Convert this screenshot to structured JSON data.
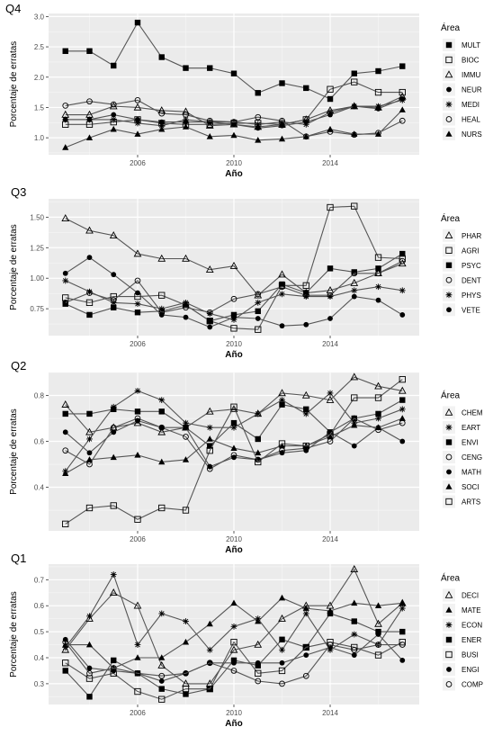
{
  "chart_data": [
    {
      "type": "line",
      "title": "Q4",
      "xlabel": "Año",
      "ylabel": "Porcentaje de erratas",
      "legend_title": "Área",
      "legend_position": "right",
      "grid": true,
      "xlim": [
        2002.3,
        2017.7
      ],
      "ylim": [
        0.72,
        3.05
      ],
      "x_ticks": [
        2006,
        2010,
        2014
      ],
      "y_ticks": [
        1.0,
        1.5,
        2.0,
        2.5,
        3.0
      ],
      "y_tick_labels": [
        "1.0",
        "1.5",
        "2.0",
        "2.5",
        "3.0"
      ],
      "x": [
        2003,
        2004,
        2005,
        2006,
        2007,
        2008,
        2009,
        2010,
        2011,
        2012,
        2013,
        2014,
        2015,
        2016,
        2017
      ],
      "series": [
        {
          "name": "MULT",
          "marker": "square-filled",
          "values": [
            2.43,
            2.43,
            2.19,
            2.9,
            2.33,
            2.15,
            2.15,
            2.06,
            1.74,
            1.9,
            1.82,
            1.64,
            2.06,
            2.1,
            2.18
          ]
        },
        {
          "name": "BIOC",
          "marker": "square-open",
          "values": [
            1.22,
            1.22,
            1.26,
            1.3,
            1.24,
            1.22,
            1.22,
            1.24,
            1.24,
            1.22,
            1.3,
            1.8,
            1.92,
            1.75,
            1.75
          ]
        },
        {
          "name": "IMMU",
          "marker": "triangle-open",
          "values": [
            1.38,
            1.38,
            1.52,
            1.5,
            1.45,
            1.43,
            1.2,
            1.22,
            1.18,
            1.22,
            1.3,
            1.45,
            1.52,
            1.5,
            1.68
          ]
        },
        {
          "name": "NEUR",
          "marker": "circle-filled",
          "values": [
            1.3,
            1.3,
            1.38,
            1.3,
            1.26,
            1.26,
            1.26,
            1.22,
            1.16,
            1.2,
            1.26,
            1.38,
            1.52,
            1.48,
            1.64
          ]
        },
        {
          "name": "MEDI",
          "marker": "asterisk",
          "values": [
            1.3,
            1.3,
            1.3,
            1.24,
            1.2,
            1.3,
            1.26,
            1.26,
            1.22,
            1.26,
            1.22,
            1.42,
            1.52,
            1.52,
            1.62
          ]
        },
        {
          "name": "HEAL",
          "marker": "circle-open",
          "values": [
            1.53,
            1.6,
            1.55,
            1.62,
            1.4,
            1.38,
            1.28,
            1.26,
            1.34,
            1.28,
            1.02,
            1.1,
            1.05,
            1.08,
            1.28
          ]
        },
        {
          "name": "NURS",
          "marker": "triangle-filled",
          "values": [
            0.84,
            1.0,
            1.14,
            1.06,
            1.14,
            1.18,
            1.02,
            1.04,
            0.96,
            0.98,
            1.02,
            1.14,
            1.06,
            1.06,
            1.46
          ]
        }
      ]
    },
    {
      "type": "line",
      "title": "Q3",
      "xlabel": "Año",
      "ylabel": "Porcentaje de erratas",
      "legend_title": "Área",
      "legend_position": "right",
      "grid": true,
      "xlim": [
        2002.3,
        2017.7
      ],
      "ylim": [
        0.53,
        1.65
      ],
      "x_ticks": [
        2006,
        2010,
        2014
      ],
      "y_ticks": [
        0.75,
        1.0,
        1.25,
        1.5
      ],
      "y_tick_labels": [
        "0.75",
        "1.00",
        "1.25",
        "1.50"
      ],
      "x": [
        2003,
        2004,
        2005,
        2006,
        2007,
        2008,
        2009,
        2010,
        2011,
        2012,
        2013,
        2014,
        2015,
        2016,
        2017
      ],
      "series": [
        {
          "name": "PHAR",
          "marker": "triangle-open",
          "values": [
            1.49,
            1.39,
            1.35,
            1.2,
            1.16,
            1.16,
            1.07,
            1.1,
            0.86,
            1.03,
            0.88,
            0.9,
            0.96,
            1.04,
            1.12
          ]
        },
        {
          "name": "AGRI",
          "marker": "square-open",
          "values": [
            0.84,
            0.8,
            0.85,
            0.85,
            0.86,
            0.78,
            0.65,
            0.59,
            0.58,
            0.94,
            0.94,
            1.58,
            1.59,
            1.17,
            1.16
          ]
        },
        {
          "name": "PSYC",
          "marker": "square-filled",
          "values": [
            0.79,
            0.7,
            0.76,
            0.72,
            0.73,
            0.78,
            0.65,
            0.7,
            0.73,
            0.95,
            0.88,
            1.08,
            1.05,
            1.08,
            1.2
          ]
        },
        {
          "name": "DENT",
          "marker": "circle-open",
          "values": [
            0.8,
            0.88,
            0.82,
            0.98,
            0.72,
            0.76,
            0.72,
            0.83,
            0.87,
            0.93,
            0.86,
            0.86,
            1.04,
            1.04,
            1.14
          ]
        },
        {
          "name": "PHYS",
          "marker": "asterisk",
          "values": [
            0.98,
            0.89,
            0.8,
            0.79,
            0.75,
            0.8,
            0.71,
            0.66,
            0.8,
            0.87,
            0.85,
            0.85,
            0.9,
            0.93,
            0.9
          ]
        },
        {
          "name": "VETE",
          "marker": "circle-filled",
          "values": [
            1.04,
            1.17,
            1.03,
            0.88,
            0.7,
            0.68,
            0.6,
            0.68,
            0.67,
            0.61,
            0.62,
            0.67,
            0.85,
            0.82,
            0.7
          ]
        }
      ]
    },
    {
      "type": "line",
      "title": "Q2",
      "xlabel": "Año",
      "ylabel": "Porcentaje de erratas",
      "legend_title": "Área",
      "legend_position": "right",
      "grid": true,
      "xlim": [
        2002.3,
        2017.7
      ],
      "ylim": [
        0.21,
        0.9
      ],
      "x_ticks": [
        2006,
        2010,
        2014
      ],
      "y_ticks": [
        0.4,
        0.6,
        0.8
      ],
      "y_tick_labels": [
        "0.4",
        "0.6",
        "0.8"
      ],
      "x": [
        2003,
        2004,
        2005,
        2006,
        2007,
        2008,
        2009,
        2010,
        2011,
        2012,
        2013,
        2014,
        2015,
        2016,
        2017
      ],
      "series": [
        {
          "name": "CHEM",
          "marker": "triangle-open",
          "values": [
            0.76,
            0.64,
            0.66,
            0.68,
            0.64,
            0.66,
            0.73,
            0.74,
            0.72,
            0.81,
            0.8,
            0.78,
            0.88,
            0.84,
            0.82
          ]
        },
        {
          "name": "EART",
          "marker": "asterisk",
          "values": [
            0.47,
            0.61,
            0.75,
            0.82,
            0.78,
            0.68,
            0.66,
            0.66,
            0.72,
            0.78,
            0.72,
            0.81,
            0.68,
            0.7,
            0.74
          ]
        },
        {
          "name": "ENVI",
          "marker": "square-filled",
          "values": [
            0.72,
            0.72,
            0.74,
            0.73,
            0.73,
            0.66,
            0.58,
            0.68,
            0.61,
            0.76,
            0.74,
            0.64,
            0.7,
            0.72,
            0.78
          ]
        },
        {
          "name": "CENG",
          "marker": "circle-open",
          "values": [
            0.56,
            0.5,
            0.66,
            0.7,
            0.66,
            0.62,
            0.48,
            0.54,
            0.52,
            0.56,
            0.57,
            0.6,
            0.7,
            0.65,
            0.68
          ]
        },
        {
          "name": "MATH",
          "marker": "circle-filled",
          "values": [
            0.64,
            0.55,
            0.64,
            0.69,
            0.66,
            0.66,
            0.49,
            0.53,
            0.52,
            0.55,
            0.56,
            0.64,
            0.58,
            0.66,
            0.6
          ]
        },
        {
          "name": "SOCI",
          "marker": "triangle-filled",
          "values": [
            0.46,
            0.52,
            0.53,
            0.54,
            0.51,
            0.52,
            0.61,
            0.57,
            0.55,
            0.58,
            0.58,
            0.62,
            0.67,
            0.66,
            0.7
          ]
        },
        {
          "name": "ARTS",
          "marker": "square-open",
          "values": [
            0.24,
            0.31,
            0.32,
            0.26,
            0.31,
            0.3,
            0.56,
            0.75,
            0.51,
            0.59,
            0.58,
            0.63,
            0.79,
            0.79,
            0.87
          ]
        }
      ]
    },
    {
      "type": "line",
      "title": "Q1",
      "xlabel": "Año",
      "ylabel": "Porcentaje de erratas",
      "legend_title": "Área",
      "legend_position": "right",
      "grid": true,
      "xlim": [
        2002.3,
        2017.7
      ],
      "ylim": [
        0.22,
        0.76
      ],
      "x_ticks": [
        2006,
        2010,
        2014
      ],
      "y_ticks": [
        0.3,
        0.4,
        0.5,
        0.6,
        0.7
      ],
      "y_tick_labels": [
        "0.3",
        "0.4",
        "0.5",
        "0.6",
        "0.7"
      ],
      "x": [
        2003,
        2004,
        2005,
        2006,
        2007,
        2008,
        2009,
        2010,
        2011,
        2012,
        2013,
        2014,
        2015,
        2016,
        2017
      ],
      "series": [
        {
          "name": "DECI",
          "marker": "triangle-open",
          "values": [
            0.43,
            0.55,
            0.65,
            0.6,
            0.37,
            0.3,
            0.3,
            0.43,
            0.45,
            0.55,
            0.6,
            0.6,
            0.74,
            0.53,
            0.61
          ]
        },
        {
          "name": "MATE",
          "marker": "triangle-filled",
          "values": [
            0.45,
            0.45,
            0.36,
            0.4,
            0.4,
            0.46,
            0.53,
            0.61,
            0.54,
            0.63,
            0.59,
            0.58,
            0.61,
            0.6,
            0.61
          ]
        },
        {
          "name": "ECON",
          "marker": "asterisk",
          "values": [
            0.44,
            0.56,
            0.72,
            0.45,
            0.57,
            0.54,
            0.43,
            0.52,
            0.55,
            0.43,
            0.57,
            0.43,
            0.49,
            0.45,
            0.59
          ]
        },
        {
          "name": "ENER",
          "marker": "square-filled",
          "values": [
            0.35,
            0.25,
            0.39,
            0.34,
            0.28,
            0.26,
            0.28,
            0.39,
            0.37,
            0.47,
            0.44,
            0.57,
            0.54,
            0.5,
            0.5
          ]
        },
        {
          "name": "BUSI",
          "marker": "square-open",
          "values": [
            0.38,
            0.32,
            0.34,
            0.27,
            0.24,
            0.28,
            0.28,
            0.46,
            0.34,
            0.35,
            0.44,
            0.46,
            0.44,
            0.41,
            0.46
          ]
        },
        {
          "name": "ENGI",
          "marker": "circle-filled",
          "values": [
            0.47,
            0.36,
            0.35,
            0.34,
            0.31,
            0.34,
            0.38,
            0.38,
            0.38,
            0.38,
            0.41,
            0.44,
            0.41,
            0.49,
            0.39
          ]
        },
        {
          "name": "COMP",
          "marker": "circle-open",
          "values": [
            0.46,
            0.34,
            0.36,
            0.34,
            0.33,
            0.34,
            0.38,
            0.35,
            0.31,
            0.3,
            0.33,
            0.45,
            0.43,
            0.45,
            0.45
          ]
        }
      ]
    }
  ]
}
